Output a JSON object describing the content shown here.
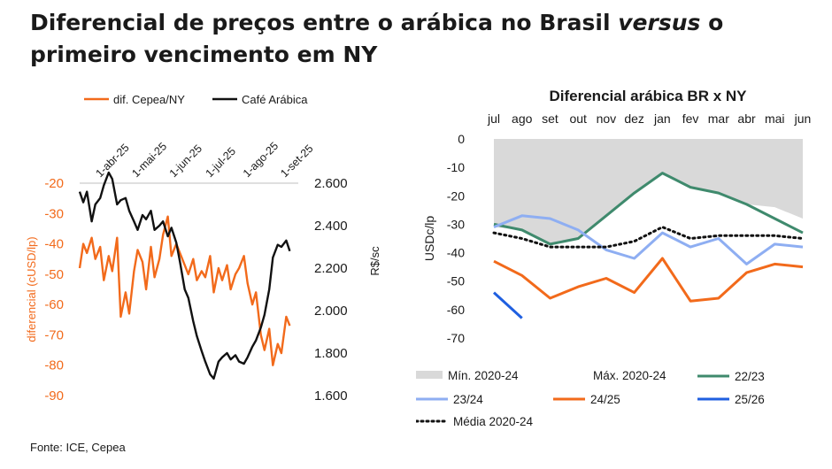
{
  "title": {
    "part1": "Diferencial de preços entre o arábica no Brasil ",
    "italic": "versus",
    "part2": " o primeiro vencimento em NY"
  },
  "source": "Fonte: ICE, Cepea",
  "colors": {
    "orange": "#f26a1b",
    "black": "#111111",
    "green": "#3f8a6d",
    "lightblue": "#8eaef2",
    "blue": "#1f5fe0",
    "gray_band": "#d9d9d9"
  },
  "chart_data": [
    {
      "type": "line",
      "title": "",
      "legend_placement": "top",
      "x_tick_labels": [
        "1-abr-25",
        "1-mai-25",
        "1-jun-25",
        "1-jul-25",
        "1-ago-25",
        "1-set-25"
      ],
      "ylabel_left": "diferencial (cUSD/lp)",
      "ylabel_right": "R$/sc",
      "ylim_left": [
        -90,
        -20
      ],
      "ylim_right": [
        1600,
        2600
      ],
      "yticks_left": [
        "-20",
        "-30",
        "-40",
        "-50",
        "-60",
        "-70",
        "-80",
        "-90"
      ],
      "yticks_right": [
        "2.600",
        "2.400",
        "2.200",
        "2.000",
        "1.800",
        "1.600"
      ],
      "series": [
        {
          "name": "dif. Cepea/NY",
          "axis": "left",
          "color": "#f26a1b",
          "x": [
            "2025-03-15",
            "2025-03-18",
            "2025-03-21",
            "2025-03-25",
            "2025-03-28",
            "2025-04-01",
            "2025-04-04",
            "2025-04-08",
            "2025-04-11",
            "2025-04-15",
            "2025-04-18",
            "2025-04-22",
            "2025-04-25",
            "2025-04-29",
            "2025-05-02",
            "2025-05-06",
            "2025-05-09",
            "2025-05-13",
            "2025-05-16",
            "2025-05-20",
            "2025-05-23",
            "2025-05-27",
            "2025-05-30",
            "2025-06-03",
            "2025-06-06",
            "2025-06-10",
            "2025-06-13",
            "2025-06-17",
            "2025-06-20",
            "2025-06-24",
            "2025-06-27",
            "2025-07-01",
            "2025-07-04",
            "2025-07-08",
            "2025-07-11",
            "2025-07-15",
            "2025-07-18",
            "2025-07-22",
            "2025-07-25",
            "2025-07-29",
            "2025-08-01",
            "2025-08-05",
            "2025-08-08",
            "2025-08-12",
            "2025-08-15",
            "2025-08-19",
            "2025-08-22",
            "2025-08-26",
            "2025-08-29",
            "2025-09-02",
            "2025-09-05"
          ],
          "values": [
            -48,
            -40,
            -43,
            -38,
            -45,
            -41,
            -52,
            -44,
            -49,
            -38,
            -64,
            -56,
            -63,
            -49,
            -42,
            -46,
            -55,
            -41,
            -51,
            -45,
            -37,
            -31,
            -44,
            -40,
            -43,
            -47,
            -50,
            -45,
            -52,
            -49,
            -51,
            -44,
            -56,
            -48,
            -52,
            -47,
            -55,
            -50,
            -48,
            -44,
            -53,
            -60,
            -56,
            -70,
            -75,
            -68,
            -80,
            -73,
            -76,
            -64,
            -67
          ]
        },
        {
          "name": "Café Arábica",
          "axis": "right",
          "color": "#111111",
          "x": [
            "2025-03-15",
            "2025-03-18",
            "2025-03-21",
            "2025-03-25",
            "2025-03-28",
            "2025-04-01",
            "2025-04-04",
            "2025-04-08",
            "2025-04-11",
            "2025-04-15",
            "2025-04-18",
            "2025-04-22",
            "2025-04-25",
            "2025-04-29",
            "2025-05-02",
            "2025-05-06",
            "2025-05-09",
            "2025-05-13",
            "2025-05-16",
            "2025-05-20",
            "2025-05-23",
            "2025-05-27",
            "2025-05-30",
            "2025-06-03",
            "2025-06-06",
            "2025-06-10",
            "2025-06-13",
            "2025-06-17",
            "2025-06-20",
            "2025-06-24",
            "2025-06-27",
            "2025-07-01",
            "2025-07-04",
            "2025-07-08",
            "2025-07-11",
            "2025-07-15",
            "2025-07-18",
            "2025-07-22",
            "2025-07-25",
            "2025-07-29",
            "2025-08-01",
            "2025-08-05",
            "2025-08-08",
            "2025-08-12",
            "2025-08-15",
            "2025-08-19",
            "2025-08-22",
            "2025-08-26",
            "2025-08-29",
            "2025-09-02",
            "2025-09-05"
          ],
          "values": [
            2560,
            2510,
            2560,
            2420,
            2500,
            2530,
            2590,
            2650,
            2620,
            2500,
            2520,
            2530,
            2470,
            2420,
            2380,
            2450,
            2430,
            2470,
            2380,
            2400,
            2420,
            2350,
            2390,
            2320,
            2230,
            2100,
            2060,
            1950,
            1880,
            1810,
            1760,
            1700,
            1680,
            1760,
            1780,
            1800,
            1770,
            1790,
            1760,
            1750,
            1780,
            1830,
            1860,
            1920,
            1980,
            2100,
            2250,
            2310,
            2300,
            2330,
            2280
          ]
        }
      ]
    },
    {
      "type": "line",
      "title": "Diferencial arábica BR x NY",
      "ylabel": "USDc/lp",
      "legend_placement": "bottom",
      "categories": [
        "jul",
        "ago",
        "set",
        "out",
        "nov",
        "dez",
        "jan",
        "fev",
        "mar",
        "abr",
        "mai",
        "jun"
      ],
      "ylim": [
        -70,
        0
      ],
      "yticks": [
        "0",
        "-10",
        "-20",
        "-30",
        "-40",
        "-50",
        "-60",
        "-70"
      ],
      "band": {
        "lower_name": "Mín. 2020-24",
        "upper_name": "Máx. 2020-24",
        "color": "#d9d9d9",
        "lower": [
          -31,
          -32,
          -37,
          -35,
          -27,
          -19,
          -12,
          -17,
          -19,
          -23,
          -24,
          -28
        ],
        "upper": [
          0,
          0,
          0,
          0,
          0,
          0,
          0,
          0,
          0,
          0,
          0,
          0
        ]
      },
      "series": [
        {
          "name": "22/23",
          "color": "#3f8a6d",
          "dash": "",
          "values": [
            -30,
            -32,
            -37,
            -35,
            -27,
            -19,
            -12,
            -17,
            -19,
            -23,
            -28,
            -33
          ]
        },
        {
          "name": "23/24",
          "color": "#8eaef2",
          "dash": "",
          "values": [
            -31,
            -27,
            -28,
            -32,
            -39,
            -42,
            -33,
            -38,
            -35,
            -44,
            -37,
            -38
          ]
        },
        {
          "name": "24/25",
          "color": "#f26a1b",
          "dash": "",
          "values": [
            -43,
            -48,
            -56,
            -52,
            -49,
            -54,
            -42,
            -57,
            -56,
            -47,
            -44,
            -45
          ]
        },
        {
          "name": "25/26",
          "color": "#1f5fe0",
          "dash": "",
          "values": [
            -54,
            -63,
            null,
            null,
            null,
            null,
            null,
            null,
            null,
            null,
            null,
            null
          ]
        },
        {
          "name": "Média 2020-24",
          "color": "#111111",
          "dash": "dotted",
          "values": [
            -33,
            -35,
            -38,
            -38,
            -38,
            -36,
            -31,
            -35,
            -34,
            -34,
            -34,
            -35
          ]
        }
      ]
    }
  ]
}
